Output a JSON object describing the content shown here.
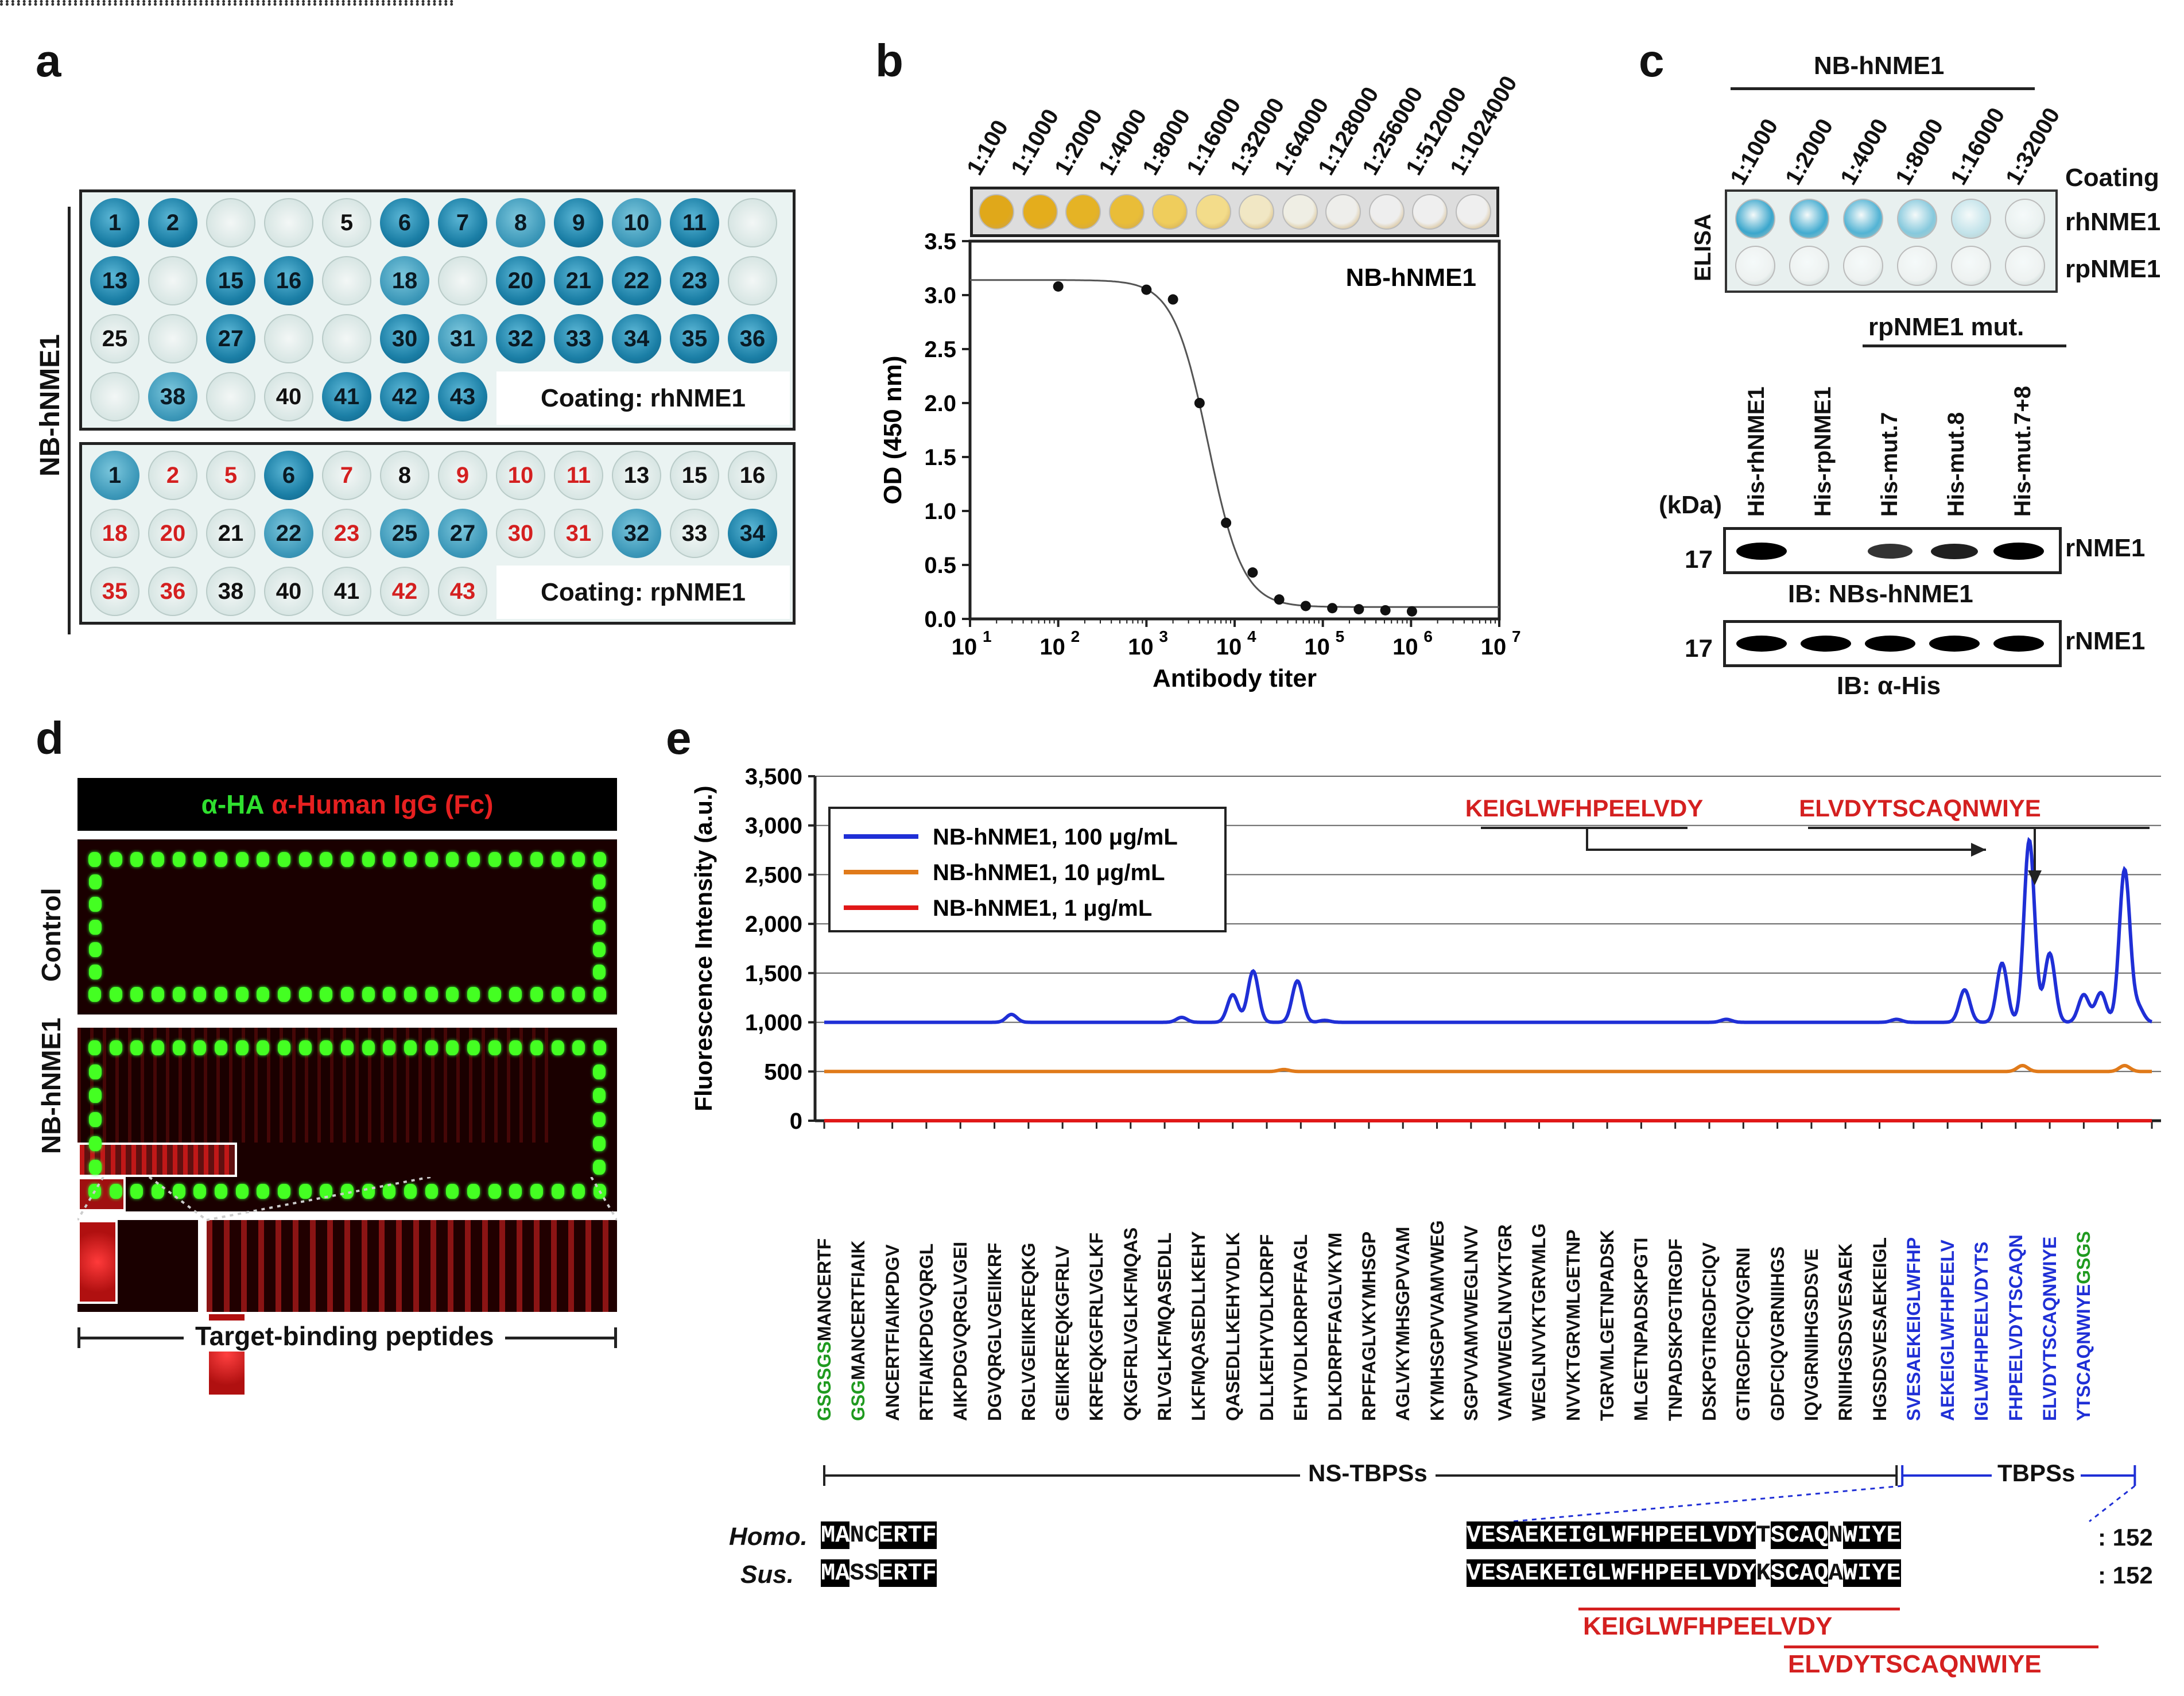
{
  "panel_labels": {
    "a": "a",
    "b": "b",
    "c": "c",
    "d": "d",
    "e": "e"
  },
  "panel_a": {
    "side_label": "NB-hNME1",
    "top_plate": {
      "coating_label": "Coating: rhNME1",
      "rows": [
        [
          {
            "t": "1",
            "s": "strong"
          },
          {
            "t": "2",
            "s": "strong"
          },
          {
            "t": "",
            "s": "empty"
          },
          {
            "t": "",
            "s": "empty"
          },
          {
            "t": "5",
            "s": "empty"
          },
          {
            "t": "6",
            "s": "strong"
          },
          {
            "t": "7",
            "s": "strong"
          },
          {
            "t": "8",
            "s": "mid"
          },
          {
            "t": "9",
            "s": "strong"
          },
          {
            "t": "10",
            "s": "mid"
          },
          {
            "t": "11",
            "s": "strong"
          },
          {
            "t": "",
            "s": "empty"
          }
        ],
        [
          {
            "t": "13",
            "s": "strong"
          },
          {
            "t": "",
            "s": "empty"
          },
          {
            "t": "15",
            "s": "strong"
          },
          {
            "t": "16",
            "s": "strong"
          },
          {
            "t": "",
            "s": "empty"
          },
          {
            "t": "18",
            "s": "mid"
          },
          {
            "t": "",
            "s": "empty"
          },
          {
            "t": "20",
            "s": "strong"
          },
          {
            "t": "21",
            "s": "strong"
          },
          {
            "t": "22",
            "s": "strong"
          },
          {
            "t": "23",
            "s": "strong"
          },
          {
            "t": "",
            "s": "empty"
          }
        ],
        [
          {
            "t": "25",
            "s": "empty"
          },
          {
            "t": "",
            "s": "empty"
          },
          {
            "t": "27",
            "s": "strong"
          },
          {
            "t": "",
            "s": "empty"
          },
          {
            "t": "",
            "s": "empty"
          },
          {
            "t": "30",
            "s": "strong"
          },
          {
            "t": "31",
            "s": "mid"
          },
          {
            "t": "32",
            "s": "strong"
          },
          {
            "t": "33",
            "s": "strong"
          },
          {
            "t": "34",
            "s": "strong"
          },
          {
            "t": "35",
            "s": "strong"
          },
          {
            "t": "36",
            "s": "strong"
          }
        ],
        [
          {
            "t": "",
            "s": "empty"
          },
          {
            "t": "38",
            "s": "mid"
          },
          {
            "t": "",
            "s": "empty"
          },
          {
            "t": "40",
            "s": "empty"
          },
          {
            "t": "41",
            "s": "strong"
          },
          {
            "t": "42",
            "s": "strong"
          },
          {
            "t": "43",
            "s": "strong"
          }
        ]
      ]
    },
    "bottom_plate": {
      "coating_label": "Coating: rpNME1",
      "rows": [
        [
          {
            "t": "1",
            "s": "mid",
            "c": "k"
          },
          {
            "t": "2",
            "s": "empty",
            "c": "r"
          },
          {
            "t": "5",
            "s": "empty",
            "c": "r"
          },
          {
            "t": "6",
            "s": "strong",
            "c": "k"
          },
          {
            "t": "7",
            "s": "empty",
            "c": "r"
          },
          {
            "t": "8",
            "s": "empty",
            "c": "k"
          },
          {
            "t": "9",
            "s": "empty",
            "c": "r"
          },
          {
            "t": "10",
            "s": "empty",
            "c": "r"
          },
          {
            "t": "11",
            "s": "empty",
            "c": "r"
          },
          {
            "t": "13",
            "s": "empty",
            "c": "k"
          },
          {
            "t": "15",
            "s": "empty",
            "c": "k"
          },
          {
            "t": "16",
            "s": "empty",
            "c": "k"
          }
        ],
        [
          {
            "t": "18",
            "s": "empty",
            "c": "r"
          },
          {
            "t": "20",
            "s": "empty",
            "c": "r"
          },
          {
            "t": "21",
            "s": "empty",
            "c": "k"
          },
          {
            "t": "22",
            "s": "mid",
            "c": "k"
          },
          {
            "t": "23",
            "s": "empty",
            "c": "r"
          },
          {
            "t": "25",
            "s": "mid",
            "c": "k"
          },
          {
            "t": "27",
            "s": "mid",
            "c": "k"
          },
          {
            "t": "30",
            "s": "empty",
            "c": "r"
          },
          {
            "t": "31",
            "s": "empty",
            "c": "r"
          },
          {
            "t": "32",
            "s": "mid",
            "c": "k"
          },
          {
            "t": "33",
            "s": "empty",
            "c": "k"
          },
          {
            "t": "34",
            "s": "strong",
            "c": "k"
          }
        ],
        [
          {
            "t": "35",
            "s": "empty",
            "c": "r"
          },
          {
            "t": "36",
            "s": "empty",
            "c": "r"
          },
          {
            "t": "38",
            "s": "empty",
            "c": "k"
          },
          {
            "t": "40",
            "s": "empty",
            "c": "k"
          },
          {
            "t": "41",
            "s": "empty",
            "c": "k"
          },
          {
            "t": "42",
            "s": "empty",
            "c": "r"
          },
          {
            "t": "43",
            "s": "empty",
            "c": "r"
          }
        ]
      ]
    }
  },
  "panel_b": {
    "dilutions": [
      "1:100",
      "1:1000",
      "1:2000",
      "1:4000",
      "1:8000",
      "1:16000",
      "1:32000",
      "1:64000",
      "1:128000",
      "1:256000",
      "1:512000",
      "1:1024000"
    ],
    "strip_colors": [
      "#e0a81a",
      "#e4ad1c",
      "#e5b325",
      "#e9bd38",
      "#efcd5c",
      "#f3dc8a",
      "#f1e7c4",
      "#efeee4",
      "#eeeeeb",
      "#eeeeee",
      "#efefef",
      "#efefef"
    ],
    "chart_data": {
      "type": "scatter",
      "title": "NB-hNME1",
      "xlabel": "Antibody titer",
      "ylabel": "OD (450 nm)",
      "xscale": "log",
      "xlim": [
        10,
        10000000
      ],
      "ylim": [
        0,
        3.5
      ],
      "x_ticks": [
        "10",
        "10",
        "10",
        "10",
        "10",
        "10",
        "10"
      ],
      "x_tick_exponents": [
        "1",
        "2",
        "3",
        "4",
        "5",
        "6",
        "7"
      ],
      "y_ticks": [
        "0.0",
        "0.5",
        "1.0",
        "1.5",
        "2.0",
        "2.5",
        "3.0",
        "3.5"
      ],
      "x": [
        100,
        1000,
        2000,
        4000,
        8000,
        16000,
        32000,
        64000,
        128000,
        256000,
        512000,
        1024000
      ],
      "y": [
        3.08,
        3.05,
        2.96,
        2.0,
        0.89,
        0.43,
        0.18,
        0.12,
        0.1,
        0.09,
        0.08,
        0.07
      ],
      "fit": {
        "top": 3.14,
        "bottom": 0.11,
        "ec50": 5000,
        "hill": 2.2
      }
    }
  },
  "panel_c": {
    "group_label": "NB-hNME1",
    "dilutions": [
      "1:1000",
      "1:2000",
      "1:4000",
      "1:8000",
      "1:16000",
      "1:32000"
    ],
    "coating_label": "Coating",
    "elisa_label": "ELISA",
    "row_labels": [
      "rhNME1",
      "rpNME1"
    ],
    "mut_group_label": "rpNME1 mut.",
    "lanes": [
      "His-rhNME1",
      "His-rpNME1",
      "His-mut.7",
      "His-mut.8",
      "His-mut.7+8"
    ],
    "kda_label": "(kDa)",
    "kda_marker": "17",
    "band_label": "rNME1",
    "ib1": "IB: NBs-hNME1",
    "ib2": "IB: α-His",
    "ib1_intensity": [
      1.0,
      0,
      0.6,
      0.75,
      1.0
    ],
    "ib2_intensity": [
      1.0,
      1.0,
      1.0,
      1.0,
      1.0
    ]
  },
  "panel_d": {
    "header_green": "α-HA",
    "header_red": "α-Human IgG (Fc)",
    "row_labels": [
      "Control",
      "NB-hNME1"
    ],
    "caption": "Target-binding peptides"
  },
  "panel_e": {
    "chart_data": {
      "type": "line",
      "ylabel": "Fluorescence Intensity (a.u.)",
      "ylim": [
        0,
        3500
      ],
      "y_ticks": [
        "0",
        "500",
        "1,000",
        "1,500",
        "2,000",
        "2,500",
        "3,000",
        "3,500"
      ],
      "series": [
        {
          "name": "NB-hNME1, 100 μg/mL",
          "color": "#1f2fd6",
          "baseline": 1000,
          "peaks": [
            [
              5.5,
              80
            ],
            [
              10.5,
              50
            ],
            [
              12.0,
              280
            ],
            [
              12.6,
              520
            ],
            [
              13.9,
              420
            ],
            [
              14.7,
              20
            ],
            [
              26.5,
              30
            ],
            [
              31.5,
              30
            ],
            [
              33.5,
              330
            ],
            [
              34.6,
              600
            ],
            [
              35.4,
              1850
            ],
            [
              36.0,
              700
            ],
            [
              37.0,
              280
            ],
            [
              37.5,
              300
            ],
            [
              38.2,
              1550
            ],
            [
              38.6,
              150
            ]
          ]
        },
        {
          "name": "NB-hNME1, 10 μg/mL",
          "color": "#e07a1a",
          "baseline": 500,
          "peaks": [
            [
              13.5,
              20
            ],
            [
              35.2,
              60
            ],
            [
              38.2,
              60
            ]
          ]
        },
        {
          "name": "NB-hNME1, 1 μg/mL",
          "color": "#e01818",
          "baseline": 0,
          "peaks": []
        }
      ],
      "n_points": 40
    },
    "epitope_labels": [
      "KEIGLWFHPEELVDY",
      "ELVDYTSCAQNWIYE"
    ],
    "peptides": [
      {
        "g": "GSGSGS",
        "b": "MANCERTF",
        "c": "k"
      },
      {
        "g": "GSG",
        "b": "MANCERTFIAIK",
        "c": "k"
      },
      {
        "g": "",
        "b": "ANCERTFIAIKPDGV",
        "c": "k"
      },
      {
        "g": "",
        "b": "RTFIAIKPDGVQRGL",
        "c": "k"
      },
      {
        "g": "",
        "b": "AIKPDGVQRGLVGEI",
        "c": "k"
      },
      {
        "g": "",
        "b": "DGVQRGLVGEIIKRF",
        "c": "k"
      },
      {
        "g": "",
        "b": "RGLVGEIIKRFEQKG",
        "c": "k"
      },
      {
        "g": "",
        "b": "GEIIKRFEQKGFRLV",
        "c": "k"
      },
      {
        "g": "",
        "b": "KRFEQKGFRLVGLKF",
        "c": "k"
      },
      {
        "g": "",
        "b": "QKGFRLVGLKFMQAS",
        "c": "k"
      },
      {
        "g": "",
        "b": "RLVGLKFMQASEDLL",
        "c": "k"
      },
      {
        "g": "",
        "b": "LKFMQASEDLLKEHY",
        "c": "k"
      },
      {
        "g": "",
        "b": "QASEDLLKEHYVDLK",
        "c": "k"
      },
      {
        "g": "",
        "b": "DLLKEHYVDLKDRPF",
        "c": "k"
      },
      {
        "g": "",
        "b": "EHYVDLKDRPFFAGL",
        "c": "k"
      },
      {
        "g": "",
        "b": "DLKDRPFFAGLVKYM",
        "c": "k"
      },
      {
        "g": "",
        "b": "RPFFAGLVKYMHSGP",
        "c": "k"
      },
      {
        "g": "",
        "b": "AGLVKYMHSGPVVAM",
        "c": "k"
      },
      {
        "g": "",
        "b": "KYMHSGPVVAMVWEG",
        "c": "k"
      },
      {
        "g": "",
        "b": "SGPVVAMVWEGLNVV",
        "c": "k"
      },
      {
        "g": "",
        "b": "VAMVWEGLNVVKTGR",
        "c": "k"
      },
      {
        "g": "",
        "b": "WEGLNVVKTGRVMLG",
        "c": "k"
      },
      {
        "g": "",
        "b": "NVVKTGRVMLGETNP",
        "c": "k"
      },
      {
        "g": "",
        "b": "TGRVMLGETNPADSK",
        "c": "k"
      },
      {
        "g": "",
        "b": "MLGETNPADSKPGTI",
        "c": "k"
      },
      {
        "g": "",
        "b": "TNPADSKPGTIRGDF",
        "c": "k"
      },
      {
        "g": "",
        "b": "DSKPGTIRGDFCIQV",
        "c": "k"
      },
      {
        "g": "",
        "b": "GTIRGDFCIQVGRNI",
        "c": "k"
      },
      {
        "g": "",
        "b": "GDFCIQVGRNIIHGS",
        "c": "k"
      },
      {
        "g": "",
        "b": "IQVGRNIIHGSDSVE",
        "c": "k"
      },
      {
        "g": "",
        "b": "RNIIHGSDSVESAEK",
        "c": "k"
      },
      {
        "g": "",
        "b": "HGSDSVESAEKEIGL",
        "c": "k"
      },
      {
        "g": "",
        "b": "SVESAEKEIGLWFHP",
        "c": "b"
      },
      {
        "g": "",
        "b": "AEKEIGLWFHPEELV",
        "c": "b"
      },
      {
        "g": "",
        "b": "IGLWFHPEELVDYTS",
        "c": "b"
      },
      {
        "g": "",
        "b": "FHPEELVDYTSCAQN",
        "c": "b"
      },
      {
        "g": "",
        "b": "ELVDYTSCAQNWIYE",
        "c": "b"
      },
      {
        "g2": "GSGS",
        "b": "YTSCAQNWIYE",
        "c": "b"
      }
    ],
    "ns_label": "NS-TBPSs",
    "tb_label": "TBPSs",
    "species": [
      "Homo.",
      "Sus."
    ],
    "align_left": [
      "MANCERTF",
      "MASSERTF"
    ],
    "align_right": [
      "VESAEKEIGLWFHPEELVDYTSCAQNWIYE",
      "VESAEKEIGLWFHPEELVDYKSCAQAWIYE"
    ],
    "length_labels": [
      ": 152",
      ": 152"
    ],
    "colors": {
      "green": "#1f9a1f",
      "blue": "#1f2fd6",
      "red": "#d42020"
    }
  }
}
